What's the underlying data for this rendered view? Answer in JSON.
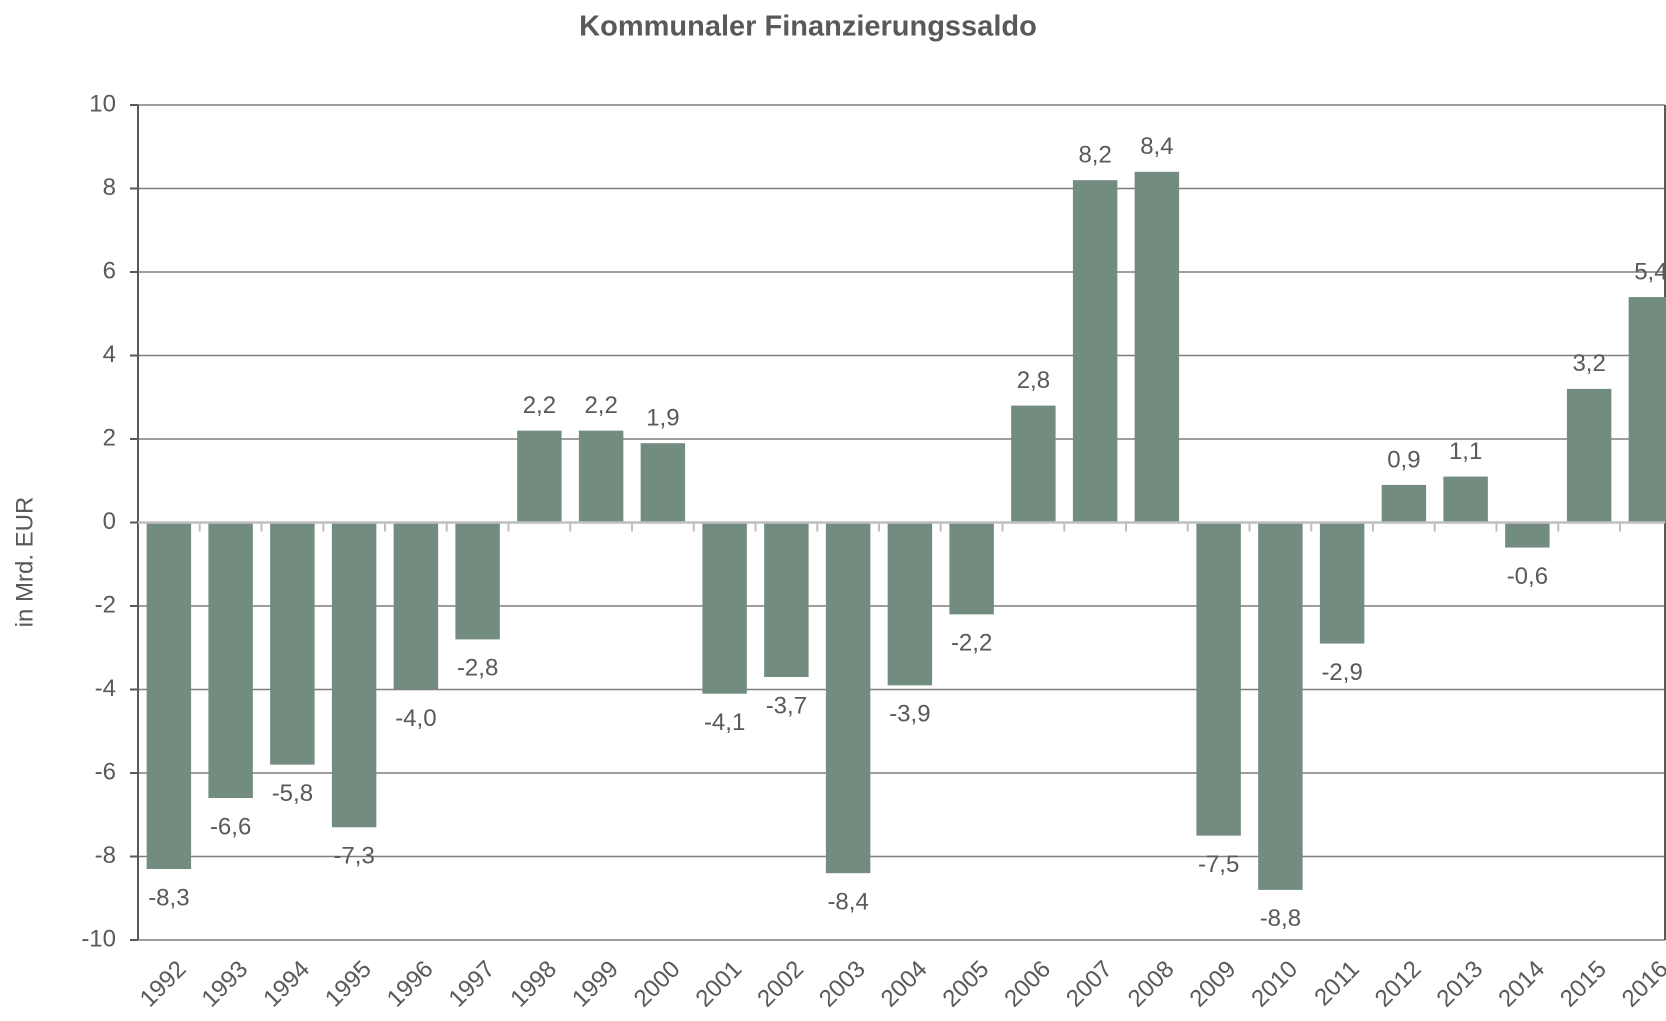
{
  "chart_data": {
    "type": "bar",
    "title": "Kommunaler Finanzierungssaldo",
    "y_label": "in Mrd. EUR",
    "categories": [
      "1992",
      "1993",
      "1994",
      "1995",
      "1996",
      "1997",
      "1998",
      "1999",
      "2000",
      "2001",
      "2002",
      "2003",
      "2004",
      "2005",
      "2006",
      "2007",
      "2008",
      "2009",
      "2010",
      "2011",
      "2012",
      "2013",
      "2014",
      "2015",
      "2016"
    ],
    "values": [
      -8.3,
      -6.6,
      -5.8,
      -7.3,
      -4.0,
      -2.8,
      2.2,
      2.2,
      1.9,
      -4.1,
      -3.7,
      -8.4,
      -3.9,
      -2.2,
      2.8,
      8.2,
      8.4,
      -7.5,
      -8.8,
      -2.9,
      0.9,
      1.1,
      -0.6,
      3.2,
      5.4
    ],
    "value_labels": [
      "-8,3",
      "-6,6",
      "-5,8",
      "-7,3",
      "-4,0",
      "-2,8",
      "2,2",
      "2,2",
      "1,9",
      "-4,1",
      "-3,7",
      "-8,4",
      "-3,9",
      "-2,2",
      "2,8",
      "8,2",
      "8,4",
      "-7,5",
      "-8,8",
      "-2,9",
      "0,9",
      "1,1",
      "-0,6",
      "3,2",
      "5,4"
    ],
    "color": "#738c80",
    "ylim": [
      -10,
      10
    ],
    "yticks": [
      -10,
      -8,
      -6,
      -4,
      -2,
      0,
      2,
      4,
      6,
      8,
      10
    ],
    "grid": true
  }
}
